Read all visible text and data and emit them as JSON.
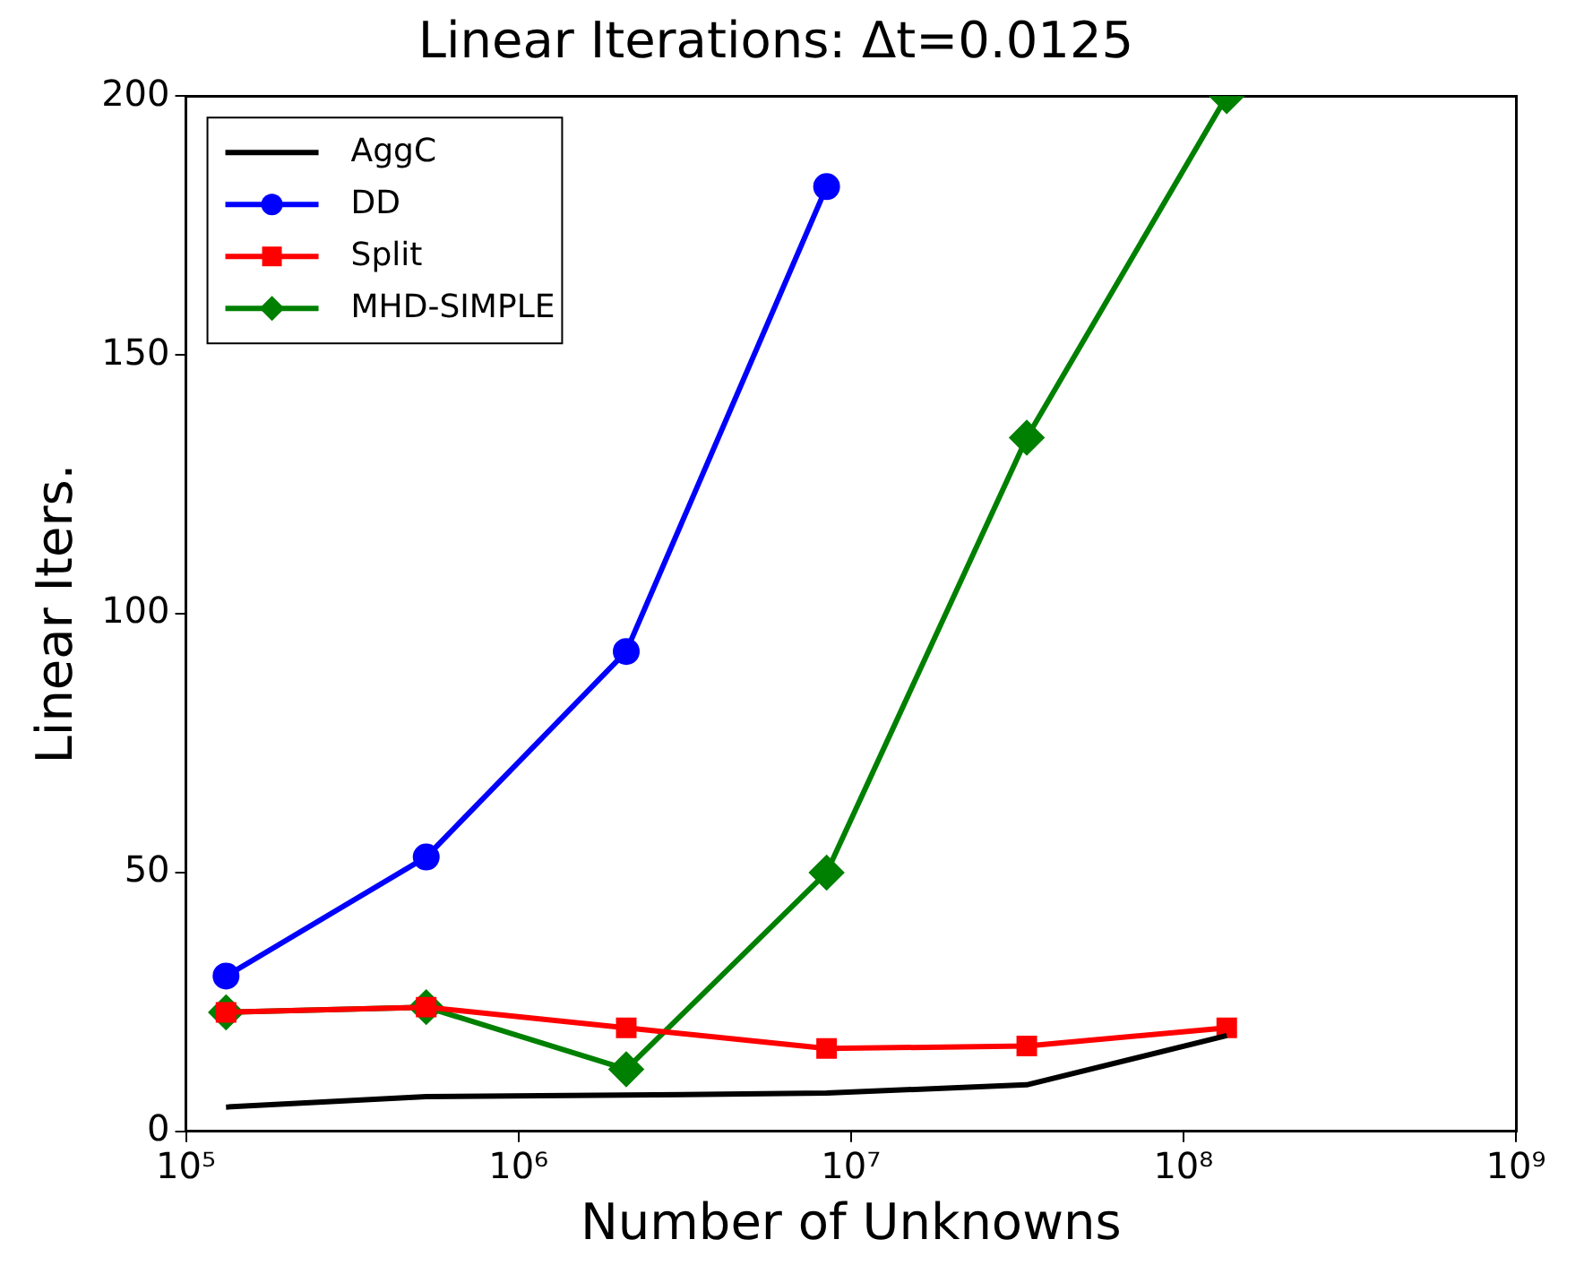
{
  "chart_data": {
    "type": "line",
    "title": "Linear Iterations: Δt=0.0125",
    "xlabel": "Number of Unknowns",
    "ylabel": "Linear Iters.",
    "log": "x",
    "xlim": [
      100000,
      1000000000
    ],
    "xticks": [
      {
        "value": 100000,
        "label": "10⁵"
      },
      {
        "value": 1000000,
        "label": "10⁶"
      },
      {
        "value": 10000000,
        "label": "10⁷"
      },
      {
        "value": 100000000,
        "label": "10⁸"
      },
      {
        "value": 1000000000,
        "label": "10⁹"
      }
    ],
    "ylim": [
      0,
      200
    ],
    "yticks": [
      0,
      50,
      100,
      150,
      200
    ],
    "grid": false,
    "legend": "top left",
    "series": [
      {
        "name": "AggC",
        "color": "#000000",
        "marker": "none",
        "x": [
          132000,
          528000,
          2110000,
          8450000,
          33800000,
          135000000
        ],
        "values": [
          4.7,
          6.7,
          7,
          7.4,
          9,
          18.5
        ]
      },
      {
        "name": "DD",
        "color": "#0000ff",
        "marker": "circle",
        "x": [
          132000,
          528000,
          2110000,
          8450000
        ],
        "values": [
          30,
          53,
          92.7,
          182.5
        ]
      },
      {
        "name": "Split",
        "color": "#ff0000",
        "marker": "square",
        "x": [
          132000,
          528000,
          2110000,
          8450000,
          33800000,
          135000000
        ],
        "values": [
          23,
          24,
          20,
          16,
          16.5,
          20
        ]
      },
      {
        "name": "MHD-SIMPLE",
        "color": "#008000",
        "marker": "diamond",
        "x": [
          132000,
          528000,
          2110000,
          8450000,
          33800000,
          135000000
        ],
        "values": [
          23,
          24,
          12,
          50,
          134,
          200
        ]
      }
    ]
  }
}
